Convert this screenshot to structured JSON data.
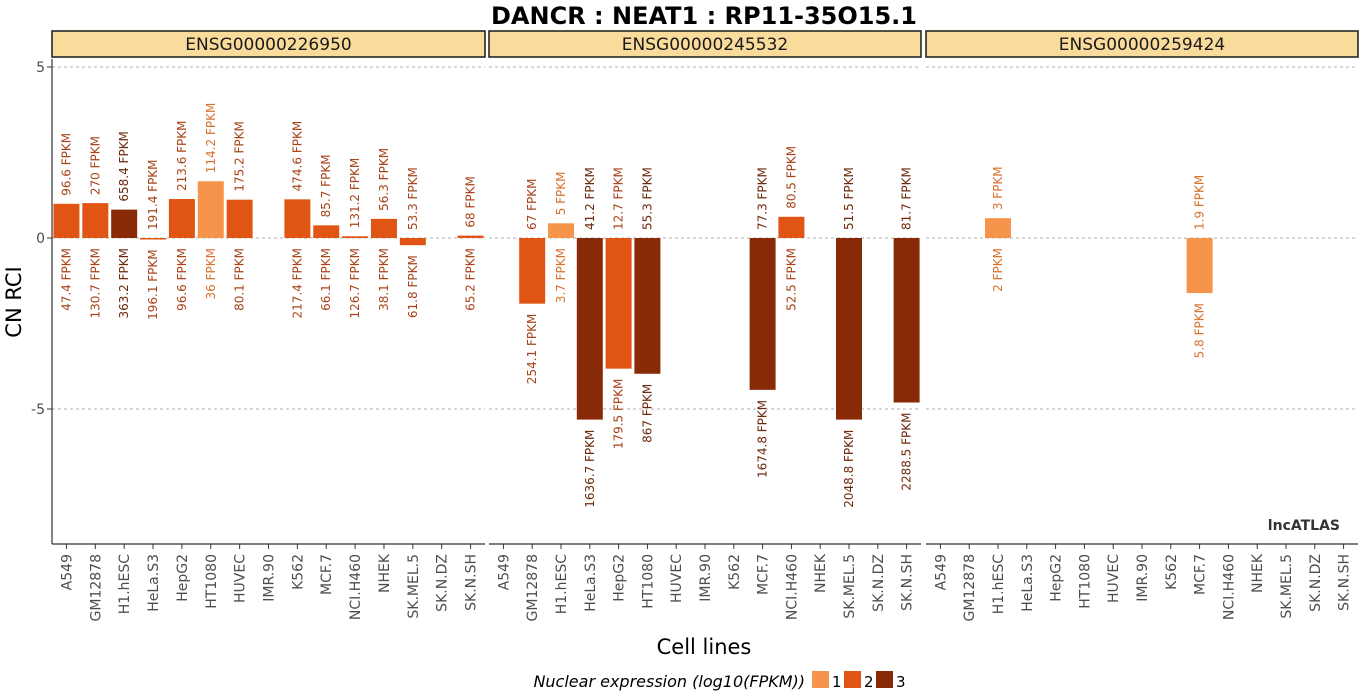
{
  "chart_data": {
    "type": "bar",
    "title": "DANCR : NEAT1 : RP11-35O15.1",
    "xlabel": "Cell lines",
    "ylabel": "CN RCI",
    "ylim": [
      -9,
      5.3
    ],
    "yticks": [
      5,
      0,
      -5
    ],
    "grid": "dashed horizontal lines at y ticks",
    "categories": [
      "A549",
      "GM12878",
      "H1.hESC",
      "HeLa.S3",
      "HepG2",
      "HT1080",
      "HUVEC",
      "IMR.90",
      "K562",
      "MCF.7",
      "NCI.H460",
      "NHEK",
      "SK.MEL.5",
      "SK.N.DZ",
      "SK.N.SH"
    ],
    "legend": {
      "title": "Nuclear expression (log10(FPKM))",
      "position": "bottom",
      "keys": [
        {
          "label": "1",
          "color": "#f7944b"
        },
        {
          "label": "2",
          "color": "#e05514"
        },
        {
          "label": "3",
          "color": "#882a06"
        }
      ]
    },
    "watermark": "lncATLAS",
    "panels": [
      {
        "strip": "ENSG00000226950",
        "bars": [
          {
            "cell": "A549",
            "value": 1.0,
            "level": 2,
            "top_label": "96.6 FPKM",
            "bottom_label": "47.4 FPKM"
          },
          {
            "cell": "GM12878",
            "value": 1.02,
            "level": 2,
            "top_label": "270 FPKM",
            "bottom_label": "130.7 FPKM"
          },
          {
            "cell": "H1.hESC",
            "value": 0.83,
            "level": 3,
            "top_label": "658.4 FPKM",
            "bottom_label": "363.2 FPKM"
          },
          {
            "cell": "HeLa.S3",
            "value": -0.04,
            "level": 2,
            "top_label": "191.4 FPKM",
            "bottom_label": "196.1 FPKM"
          },
          {
            "cell": "HepG2",
            "value": 1.14,
            "level": 2,
            "top_label": "213.6 FPKM",
            "bottom_label": "96.6 FPKM"
          },
          {
            "cell": "HT1080",
            "value": 1.66,
            "level": 1,
            "top_label": "114.2 FPKM",
            "bottom_label": "36 FPKM"
          },
          {
            "cell": "HUVEC",
            "value": 1.12,
            "level": 2,
            "top_label": "175.2 FPKM",
            "bottom_label": "80.1 FPKM"
          },
          {
            "cell": "IMR.90",
            "value": null,
            "level": null,
            "top_label": "",
            "bottom_label": ""
          },
          {
            "cell": "K562",
            "value": 1.13,
            "level": 2,
            "top_label": "474.6 FPKM",
            "bottom_label": "217.4 FPKM"
          },
          {
            "cell": "MCF.7",
            "value": 0.37,
            "level": 2,
            "top_label": "85.7 FPKM",
            "bottom_label": "66.1 FPKM"
          },
          {
            "cell": "NCI.H460",
            "value": 0.05,
            "level": 2,
            "top_label": "131.2 FPKM",
            "bottom_label": "126.7 FPKM"
          },
          {
            "cell": "NHEK",
            "value": 0.56,
            "level": 2,
            "top_label": "56.3 FPKM",
            "bottom_label": "38.1 FPKM"
          },
          {
            "cell": "SK.MEL.5",
            "value": -0.21,
            "level": 2,
            "top_label": "53.3 FPKM",
            "bottom_label": "61.8 FPKM"
          },
          {
            "cell": "SK.N.DZ",
            "value": null,
            "level": null,
            "top_label": "",
            "bottom_label": ""
          },
          {
            "cell": "SK.N.SH",
            "value": 0.07,
            "level": 2,
            "top_label": "68 FPKM",
            "bottom_label": "65.2 FPKM"
          }
        ]
      },
      {
        "strip": "ENSG00000245532",
        "bars": [
          {
            "cell": "A549",
            "value": null,
            "level": null,
            "top_label": "",
            "bottom_label": ""
          },
          {
            "cell": "GM12878",
            "value": -1.92,
            "level": 2,
            "top_label": "67 FPKM",
            "bottom_label": "254.1 FPKM"
          },
          {
            "cell": "H1.hESC",
            "value": 0.43,
            "level": 1,
            "top_label": "5 FPKM",
            "bottom_label": "3.7 FPKM"
          },
          {
            "cell": "HeLa.S3",
            "value": -5.31,
            "level": 3,
            "top_label": "41.2 FPKM",
            "bottom_label": "1636.7 FPKM"
          },
          {
            "cell": "HepG2",
            "value": -3.82,
            "level": 2,
            "top_label": "12.7 FPKM",
            "bottom_label": "179.5 FPKM"
          },
          {
            "cell": "HT1080",
            "value": -3.97,
            "level": 3,
            "top_label": "55.3 FPKM",
            "bottom_label": "867 FPKM"
          },
          {
            "cell": "HUVEC",
            "value": null,
            "level": null,
            "top_label": "",
            "bottom_label": ""
          },
          {
            "cell": "IMR.90",
            "value": null,
            "level": null,
            "top_label": "",
            "bottom_label": ""
          },
          {
            "cell": "K562",
            "value": null,
            "level": null,
            "top_label": "",
            "bottom_label": ""
          },
          {
            "cell": "MCF.7",
            "value": -4.44,
            "level": 3,
            "top_label": "77.3 FPKM",
            "bottom_label": "1674.8 FPKM"
          },
          {
            "cell": "NCI.H460",
            "value": 0.62,
            "level": 2,
            "top_label": "80.5 FPKM",
            "bottom_label": "52.5 FPKM"
          },
          {
            "cell": "NHEK",
            "value": null,
            "level": null,
            "top_label": "",
            "bottom_label": ""
          },
          {
            "cell": "SK.MEL.5",
            "value": -5.31,
            "level": 3,
            "top_label": "51.5 FPKM",
            "bottom_label": "2048.8 FPKM"
          },
          {
            "cell": "SK.N.DZ",
            "value": null,
            "level": null,
            "top_label": "",
            "bottom_label": ""
          },
          {
            "cell": "SK.N.SH",
            "value": -4.81,
            "level": 3,
            "top_label": "81.7 FPKM",
            "bottom_label": "2288.5 FPKM"
          }
        ]
      },
      {
        "strip": "ENSG00000259424",
        "bars": [
          {
            "cell": "A549",
            "value": null,
            "level": null,
            "top_label": "",
            "bottom_label": ""
          },
          {
            "cell": "GM12878",
            "value": null,
            "level": null,
            "top_label": "",
            "bottom_label": ""
          },
          {
            "cell": "H1.hESC",
            "value": 0.58,
            "level": 1,
            "top_label": "3 FPKM",
            "bottom_label": "2 FPKM"
          },
          {
            "cell": "HeLa.S3",
            "value": null,
            "level": null,
            "top_label": "",
            "bottom_label": ""
          },
          {
            "cell": "HepG2",
            "value": null,
            "level": null,
            "top_label": "",
            "bottom_label": ""
          },
          {
            "cell": "HT1080",
            "value": null,
            "level": null,
            "top_label": "",
            "bottom_label": ""
          },
          {
            "cell": "HUVEC",
            "value": null,
            "level": null,
            "top_label": "",
            "bottom_label": ""
          },
          {
            "cell": "IMR.90",
            "value": null,
            "level": null,
            "top_label": "",
            "bottom_label": ""
          },
          {
            "cell": "K562",
            "value": null,
            "level": null,
            "top_label": "",
            "bottom_label": ""
          },
          {
            "cell": "MCF.7",
            "value": -1.61,
            "level": 1,
            "top_label": "1.9 FPKM",
            "bottom_label": "5.8 FPKM"
          },
          {
            "cell": "NCI.H460",
            "value": null,
            "level": null,
            "top_label": "",
            "bottom_label": ""
          },
          {
            "cell": "NHEK",
            "value": null,
            "level": null,
            "top_label": "",
            "bottom_label": ""
          },
          {
            "cell": "SK.MEL.5",
            "value": null,
            "level": null,
            "top_label": "",
            "bottom_label": ""
          },
          {
            "cell": "SK.N.DZ",
            "value": null,
            "level": null,
            "top_label": "",
            "bottom_label": ""
          },
          {
            "cell": "SK.N.SH",
            "value": null,
            "level": null,
            "top_label": "",
            "bottom_label": ""
          }
        ]
      }
    ]
  },
  "colors": {
    "strip_fill": "#f9dc9c",
    "grid": "#999999",
    "level1_text": "#d9722f",
    "level2_text": "#a9441a",
    "level3_text": "#6e2a0d"
  }
}
